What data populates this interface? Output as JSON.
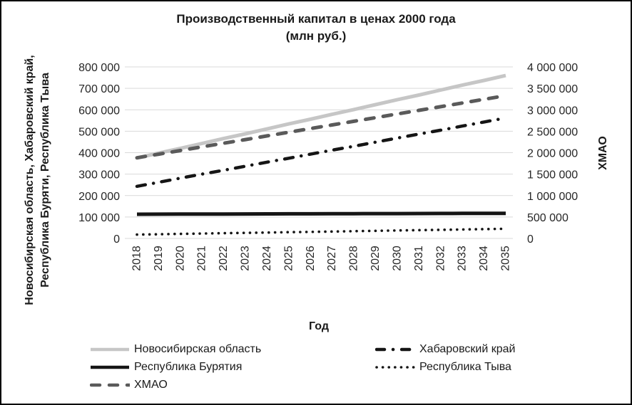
{
  "window": {
    "background": "#ffffff",
    "border_color": "#000000"
  },
  "chart_data": {
    "type": "line",
    "title": "Производственный капитал в ценах 2000 года",
    "subtitle": "(млн руб.)",
    "xlabel": "Год",
    "ylabel_left_lines": [
      "Новосибирская область, Хабаровский край,",
      "Республика Буряти, Республика Тыва"
    ],
    "ylabel_right": "ХМАО",
    "grid": "horizontal",
    "gridline_color": "#d9d9d9",
    "legend_position": "bottom-two-columns",
    "categories": [
      "2018",
      "2019",
      "2020",
      "2021",
      "2022",
      "2023",
      "2024",
      "2025",
      "2026",
      "2027",
      "2028",
      "2029",
      "2030",
      "2031",
      "2032",
      "2033",
      "2034",
      "2035"
    ],
    "left_axis": {
      "min": 0,
      "max": 800000,
      "step": 100000,
      "tick_labels": [
        "0",
        "100 000",
        "200 000",
        "300 000",
        "400 000",
        "500 000",
        "600 000",
        "700 000",
        "800 000"
      ]
    },
    "right_axis": {
      "min": 0,
      "max": 4000000,
      "step": 500000,
      "tick_labels": [
        "0",
        "500 000",
        "1 000 000",
        "1 500 000",
        "2 000 000",
        "2 500 000",
        "3 000 000",
        "3 500 000",
        "4 000 000"
      ]
    },
    "series": [
      {
        "name": "Новосибирская область",
        "axis": "left",
        "color": "#c6c6c6",
        "style": "solid",
        "width": 5,
        "values": [
          375000,
          398000,
          420000,
          443000,
          466000,
          488000,
          511000,
          534000,
          556000,
          579000,
          601000,
          624000,
          647000,
          669000,
          692000,
          715000,
          737000,
          760000
        ]
      },
      {
        "name": "Хабаровский край",
        "axis": "left",
        "color": "#151515",
        "style": "dash-dot",
        "width": 4.5,
        "values": [
          243000,
          262000,
          281000,
          300000,
          318000,
          337000,
          356000,
          374000,
          393000,
          412000,
          430000,
          449000,
          468000,
          487000,
          505000,
          524000,
          543000,
          562000
        ]
      },
      {
        "name": "Республика Бурятия",
        "axis": "left",
        "color": "#151515",
        "style": "solid",
        "width": 5,
        "values": [
          113000,
          113300,
          113500,
          113800,
          114000,
          114300,
          114500,
          114800,
          115000,
          115300,
          115500,
          115800,
          116000,
          116300,
          116500,
          116800,
          117000,
          117200
        ]
      },
      {
        "name": "Республика Тыва",
        "axis": "left",
        "color": "#151515",
        "style": "dotted",
        "width": 3.6,
        "values": [
          18000,
          19600,
          21200,
          22800,
          24400,
          26000,
          27600,
          29100,
          30700,
          32300,
          33900,
          35500,
          37100,
          38700,
          40300,
          41800,
          43400,
          45000
        ]
      },
      {
        "name": "ХМАО",
        "axis": "right",
        "color": "#5a5a5a",
        "style": "dashed",
        "width": 5,
        "values": [
          1880000,
          1965000,
          2050000,
          2136000,
          2221000,
          2306000,
          2391000,
          2476000,
          2562000,
          2647000,
          2732000,
          2817000,
          2903000,
          2988000,
          3073000,
          3158000,
          3244000,
          3330000
        ]
      }
    ]
  }
}
